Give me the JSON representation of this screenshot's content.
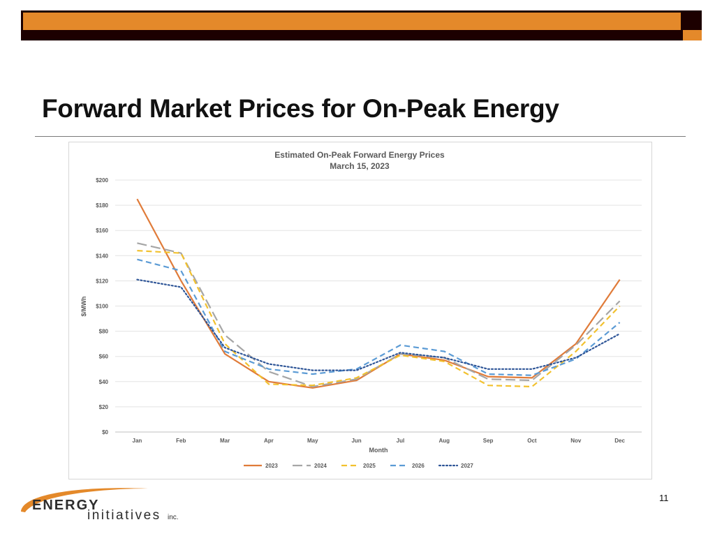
{
  "slide": {
    "title": "Forward Market Prices for On-Peak Energy",
    "page_number": "11"
  },
  "logo": {
    "word1": "ENERGY",
    "word2": "initiatives",
    "suffix": "inc."
  },
  "colors": {
    "accent_orange": "#e4892a",
    "dark_band": "#1c0000"
  },
  "chart_data": {
    "type": "line",
    "title": "Estimated On-Peak Forward Energy Prices",
    "subtitle": "March 15, 2023",
    "xlabel": "Month",
    "ylabel": "$/MWh",
    "ylim": [
      0,
      200
    ],
    "yticks": [
      "$0",
      "$20",
      "$40",
      "$60",
      "$80",
      "$100",
      "$120",
      "$140",
      "$160",
      "$180",
      "$200"
    ],
    "categories": [
      "Jan",
      "Feb",
      "Mar",
      "Apr",
      "May",
      "Jun",
      "Jul",
      "Aug",
      "Sep",
      "Oct",
      "Nov",
      "Dec"
    ],
    "grid": true,
    "legend_position": "bottom",
    "series": [
      {
        "name": "2023",
        "color": "#e07b39",
        "dash": "solid",
        "values": [
          185,
          120,
          62,
          40,
          35,
          41,
          62,
          57,
          44,
          43,
          70,
          121
        ]
      },
      {
        "name": "2024",
        "color": "#a6a6a6",
        "dash": "longdash",
        "values": [
          150,
          142,
          77,
          48,
          36,
          42,
          62,
          59,
          42,
          41,
          69,
          104
        ]
      },
      {
        "name": "2025",
        "color": "#f2c12e",
        "dash": "dash",
        "values": [
          144,
          142,
          70,
          38,
          37,
          43,
          61,
          56,
          37,
          36,
          64,
          100
        ]
      },
      {
        "name": "2026",
        "color": "#5b9bd5",
        "dash": "dash",
        "values": [
          137,
          128,
          64,
          50,
          46,
          50,
          69,
          64,
          46,
          45,
          58,
          87
        ]
      },
      {
        "name": "2027",
        "color": "#2e5597",
        "dash": "dot",
        "values": [
          121,
          115,
          67,
          54,
          49,
          49,
          63,
          59,
          50,
          50,
          59,
          78
        ]
      }
    ]
  }
}
